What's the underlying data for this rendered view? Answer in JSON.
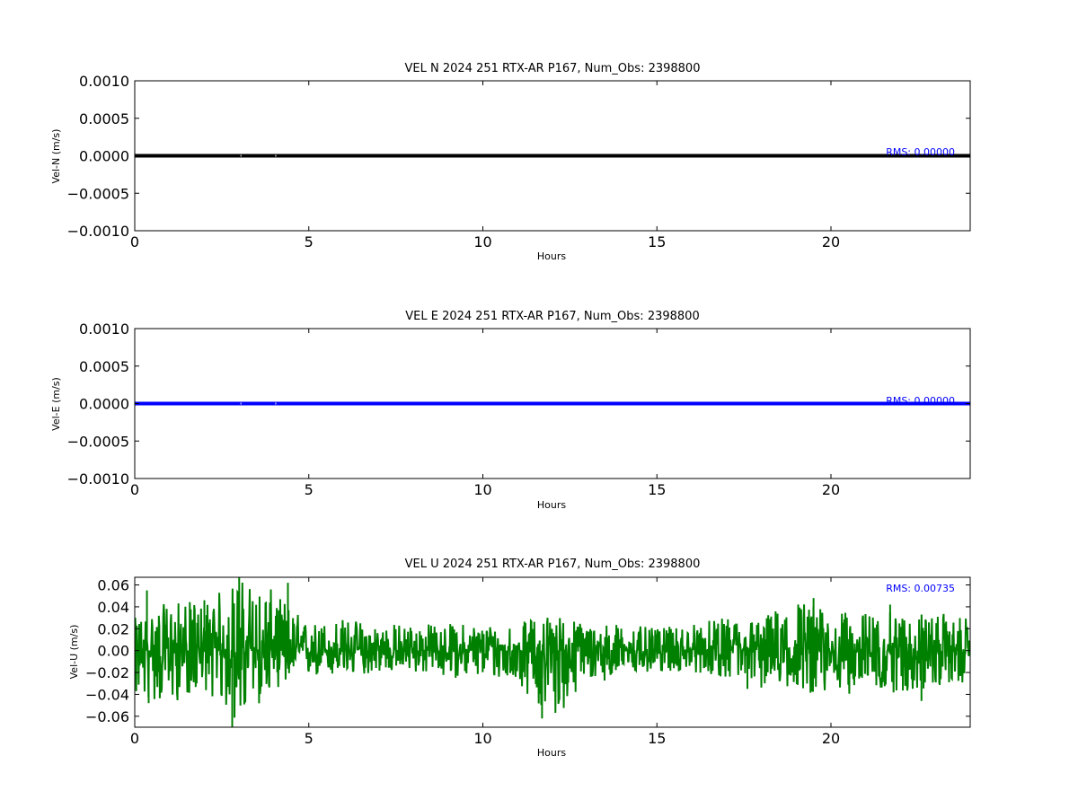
{
  "chart_data": [
    {
      "type": "line",
      "title": "VEL N 2024 251 RTX-AR  P167, Num_Obs: 2398800",
      "xlabel": "Hours",
      "ylabel": "Vel-N (m/s)",
      "xlim": [
        0,
        24
      ],
      "ylim": [
        -0.001,
        0.001
      ],
      "x_ticks": [
        0,
        5,
        10,
        15,
        20
      ],
      "x_tick_labels": [
        "0",
        "5",
        "10",
        "15",
        "20"
      ],
      "y_ticks": [
        0.001,
        0.0005,
        0,
        -0.0005,
        -0.001
      ],
      "y_tick_labels": [
        "0.0010",
        "0.0005",
        "0.0000",
        "−0.0005",
        "−0.0010"
      ],
      "grid": false,
      "legend": "none",
      "color": "#000000",
      "rms_label": "RMS:  0.00000",
      "series": [
        {
          "values_summary": "constant 0.0 across 0–24 h",
          "x": [
            0,
            24
          ],
          "y": [
            0,
            0
          ]
        }
      ]
    },
    {
      "type": "line",
      "title": "VEL E 2024 251 RTX-AR  P167, Num_Obs: 2398800",
      "xlabel": "Hours",
      "ylabel": "Vel-E (m/s)",
      "xlim": [
        0,
        24
      ],
      "ylim": [
        -0.001,
        0.001
      ],
      "x_ticks": [
        0,
        5,
        10,
        15,
        20
      ],
      "x_tick_labels": [
        "0",
        "5",
        "10",
        "15",
        "20"
      ],
      "y_ticks": [
        0.001,
        0.0005,
        0,
        -0.0005,
        -0.001
      ],
      "y_tick_labels": [
        "0.0010",
        "0.0005",
        "0.0000",
        "−0.0005",
        "−0.0010"
      ],
      "grid": false,
      "legend": "none",
      "color": "#0000ff",
      "rms_label": "RMS:  0.00000",
      "series": [
        {
          "values_summary": "constant 0.0 across 0–24 h",
          "x": [
            0,
            24
          ],
          "y": [
            0,
            0
          ]
        }
      ]
    },
    {
      "type": "line",
      "title": "VEL U 2024 251 RTX-AR  P167, Num_Obs: 2398800",
      "xlabel": "Hours",
      "ylabel": "Vel-U (m/s)",
      "xlim": [
        0,
        24
      ],
      "ylim": [
        -0.07,
        0.067
      ],
      "x_ticks": [
        0,
        5,
        10,
        15,
        20
      ],
      "x_tick_labels": [
        "0",
        "5",
        "10",
        "15",
        "20"
      ],
      "y_ticks": [
        0.06,
        0.04,
        0.02,
        0,
        -0.02,
        -0.04,
        -0.06
      ],
      "y_tick_labels": [
        "0.06",
        "0.04",
        "0.02",
        "0.00",
        "−0.02",
        "−0.04",
        "−0.06"
      ],
      "grid": false,
      "legend": "none",
      "color": "#008000",
      "rms_label": "RMS:  0.00735",
      "series": [
        {
          "values_summary": "dense noise around 0; approx. per-hour envelope shown",
          "hours": [
            0,
            1,
            2,
            3,
            4,
            5,
            6,
            7,
            8,
            9,
            10,
            11,
            12,
            13,
            14,
            15,
            16,
            17,
            18,
            19,
            20,
            21,
            22,
            23,
            24
          ],
          "upper_envelope": [
            0.03,
            0.045,
            0.045,
            0.067,
            0.055,
            0.025,
            0.03,
            0.025,
            0.025,
            0.025,
            0.025,
            0.025,
            0.035,
            0.025,
            0.025,
            0.02,
            0.025,
            0.03,
            0.03,
            0.05,
            0.035,
            0.035,
            0.035,
            0.035,
            0.03
          ],
          "lower_envelope": [
            -0.045,
            -0.05,
            -0.035,
            -0.07,
            -0.035,
            -0.025,
            -0.025,
            -0.02,
            -0.02,
            -0.025,
            -0.025,
            -0.03,
            -0.065,
            -0.03,
            -0.025,
            -0.02,
            -0.02,
            -0.025,
            -0.035,
            -0.035,
            -0.045,
            -0.035,
            -0.04,
            -0.035,
            -0.03
          ]
        }
      ]
    }
  ]
}
